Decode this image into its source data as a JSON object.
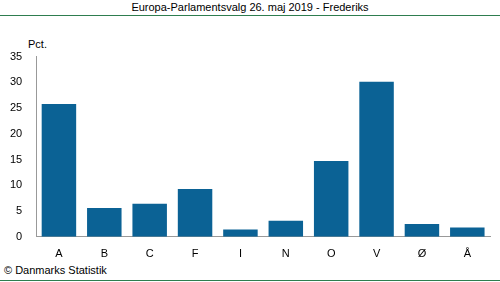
{
  "chart_data": {
    "type": "bar",
    "title": "Europa-Parlamentsvalg 26. maj 2019 - Frederiks",
    "y_label": "Pct.",
    "annotations": [
      "© Danmarks Statistik"
    ],
    "categories": [
      "A",
      "B",
      "C",
      "F",
      "I",
      "N",
      "O",
      "V",
      "Ø",
      "Å"
    ],
    "values": [
      25.8,
      5.6,
      6.4,
      9.3,
      1.4,
      3.1,
      14.7,
      30.1,
      2.5,
      1.8
    ],
    "color": "#0b6295",
    "ylim": [
      0,
      35
    ],
    "yticks": [
      0,
      5,
      10,
      15,
      20,
      25,
      30,
      35
    ],
    "grid": false
  }
}
